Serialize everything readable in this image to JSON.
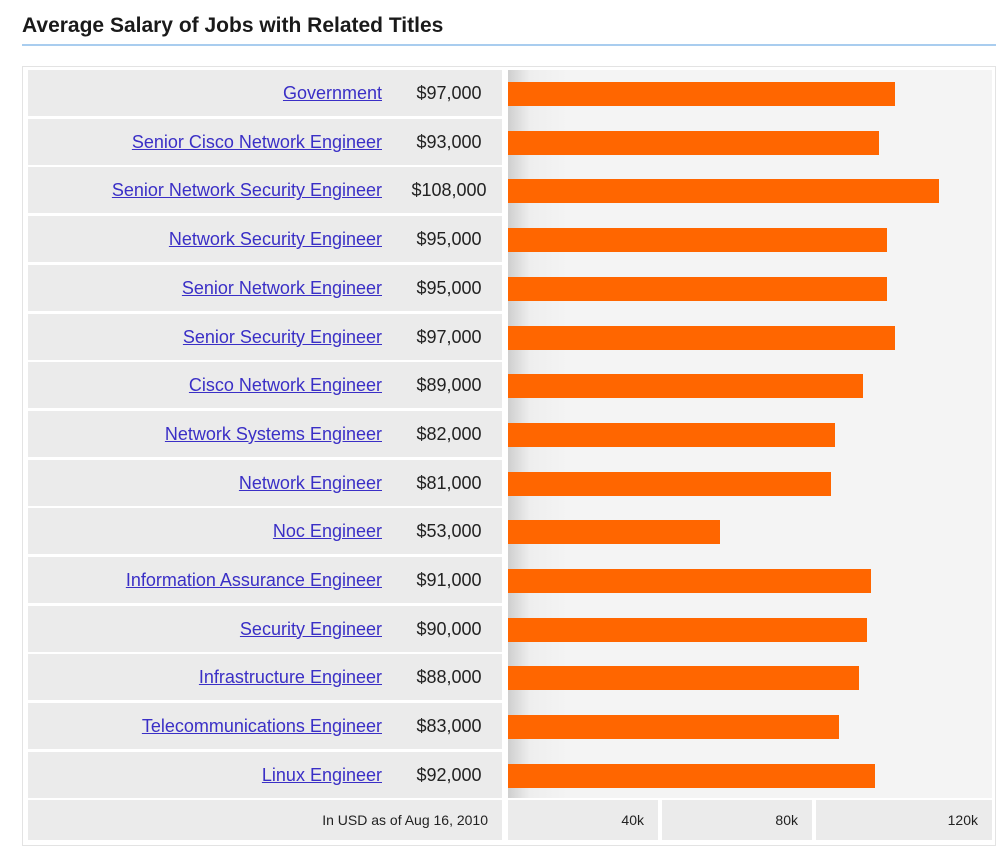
{
  "chart_data": {
    "type": "bar",
    "orientation": "horizontal",
    "title": "Average Salary of Jobs with Related Titles",
    "categories": [
      "Government",
      "Senior Cisco Network Engineer",
      "Senior Network Security Engineer",
      "Network Security Engineer",
      "Senior Network Engineer",
      "Senior Security Engineer",
      "Cisco Network Engineer",
      "Network Systems Engineer",
      "Network Engineer",
      "Noc Engineer",
      "Information Assurance Engineer",
      "Security Engineer",
      "Infrastructure Engineer",
      "Telecommunications Engineer",
      "Linux Engineer"
    ],
    "values": [
      97000,
      93000,
      108000,
      95000,
      95000,
      97000,
      89000,
      82000,
      81000,
      53000,
      91000,
      90000,
      88000,
      83000,
      92000
    ],
    "value_labels": [
      "$97,000",
      "$93,000",
      "$108,000",
      "$95,000",
      "$95,000",
      "$97,000",
      "$89,000",
      "$82,000",
      "$81,000",
      "$53,000",
      "$91,000",
      "$90,000",
      "$88,000",
      "$83,000",
      "$92,000"
    ],
    "x_ticks": [
      40000,
      80000,
      120000
    ],
    "x_tick_labels": [
      "40k",
      "80k",
      "120k"
    ],
    "xlim": [
      0,
      120000
    ],
    "note": "In USD as of Aug 16, 2010",
    "bar_color": "#ff6600",
    "link_color": "#3a2fc6"
  }
}
